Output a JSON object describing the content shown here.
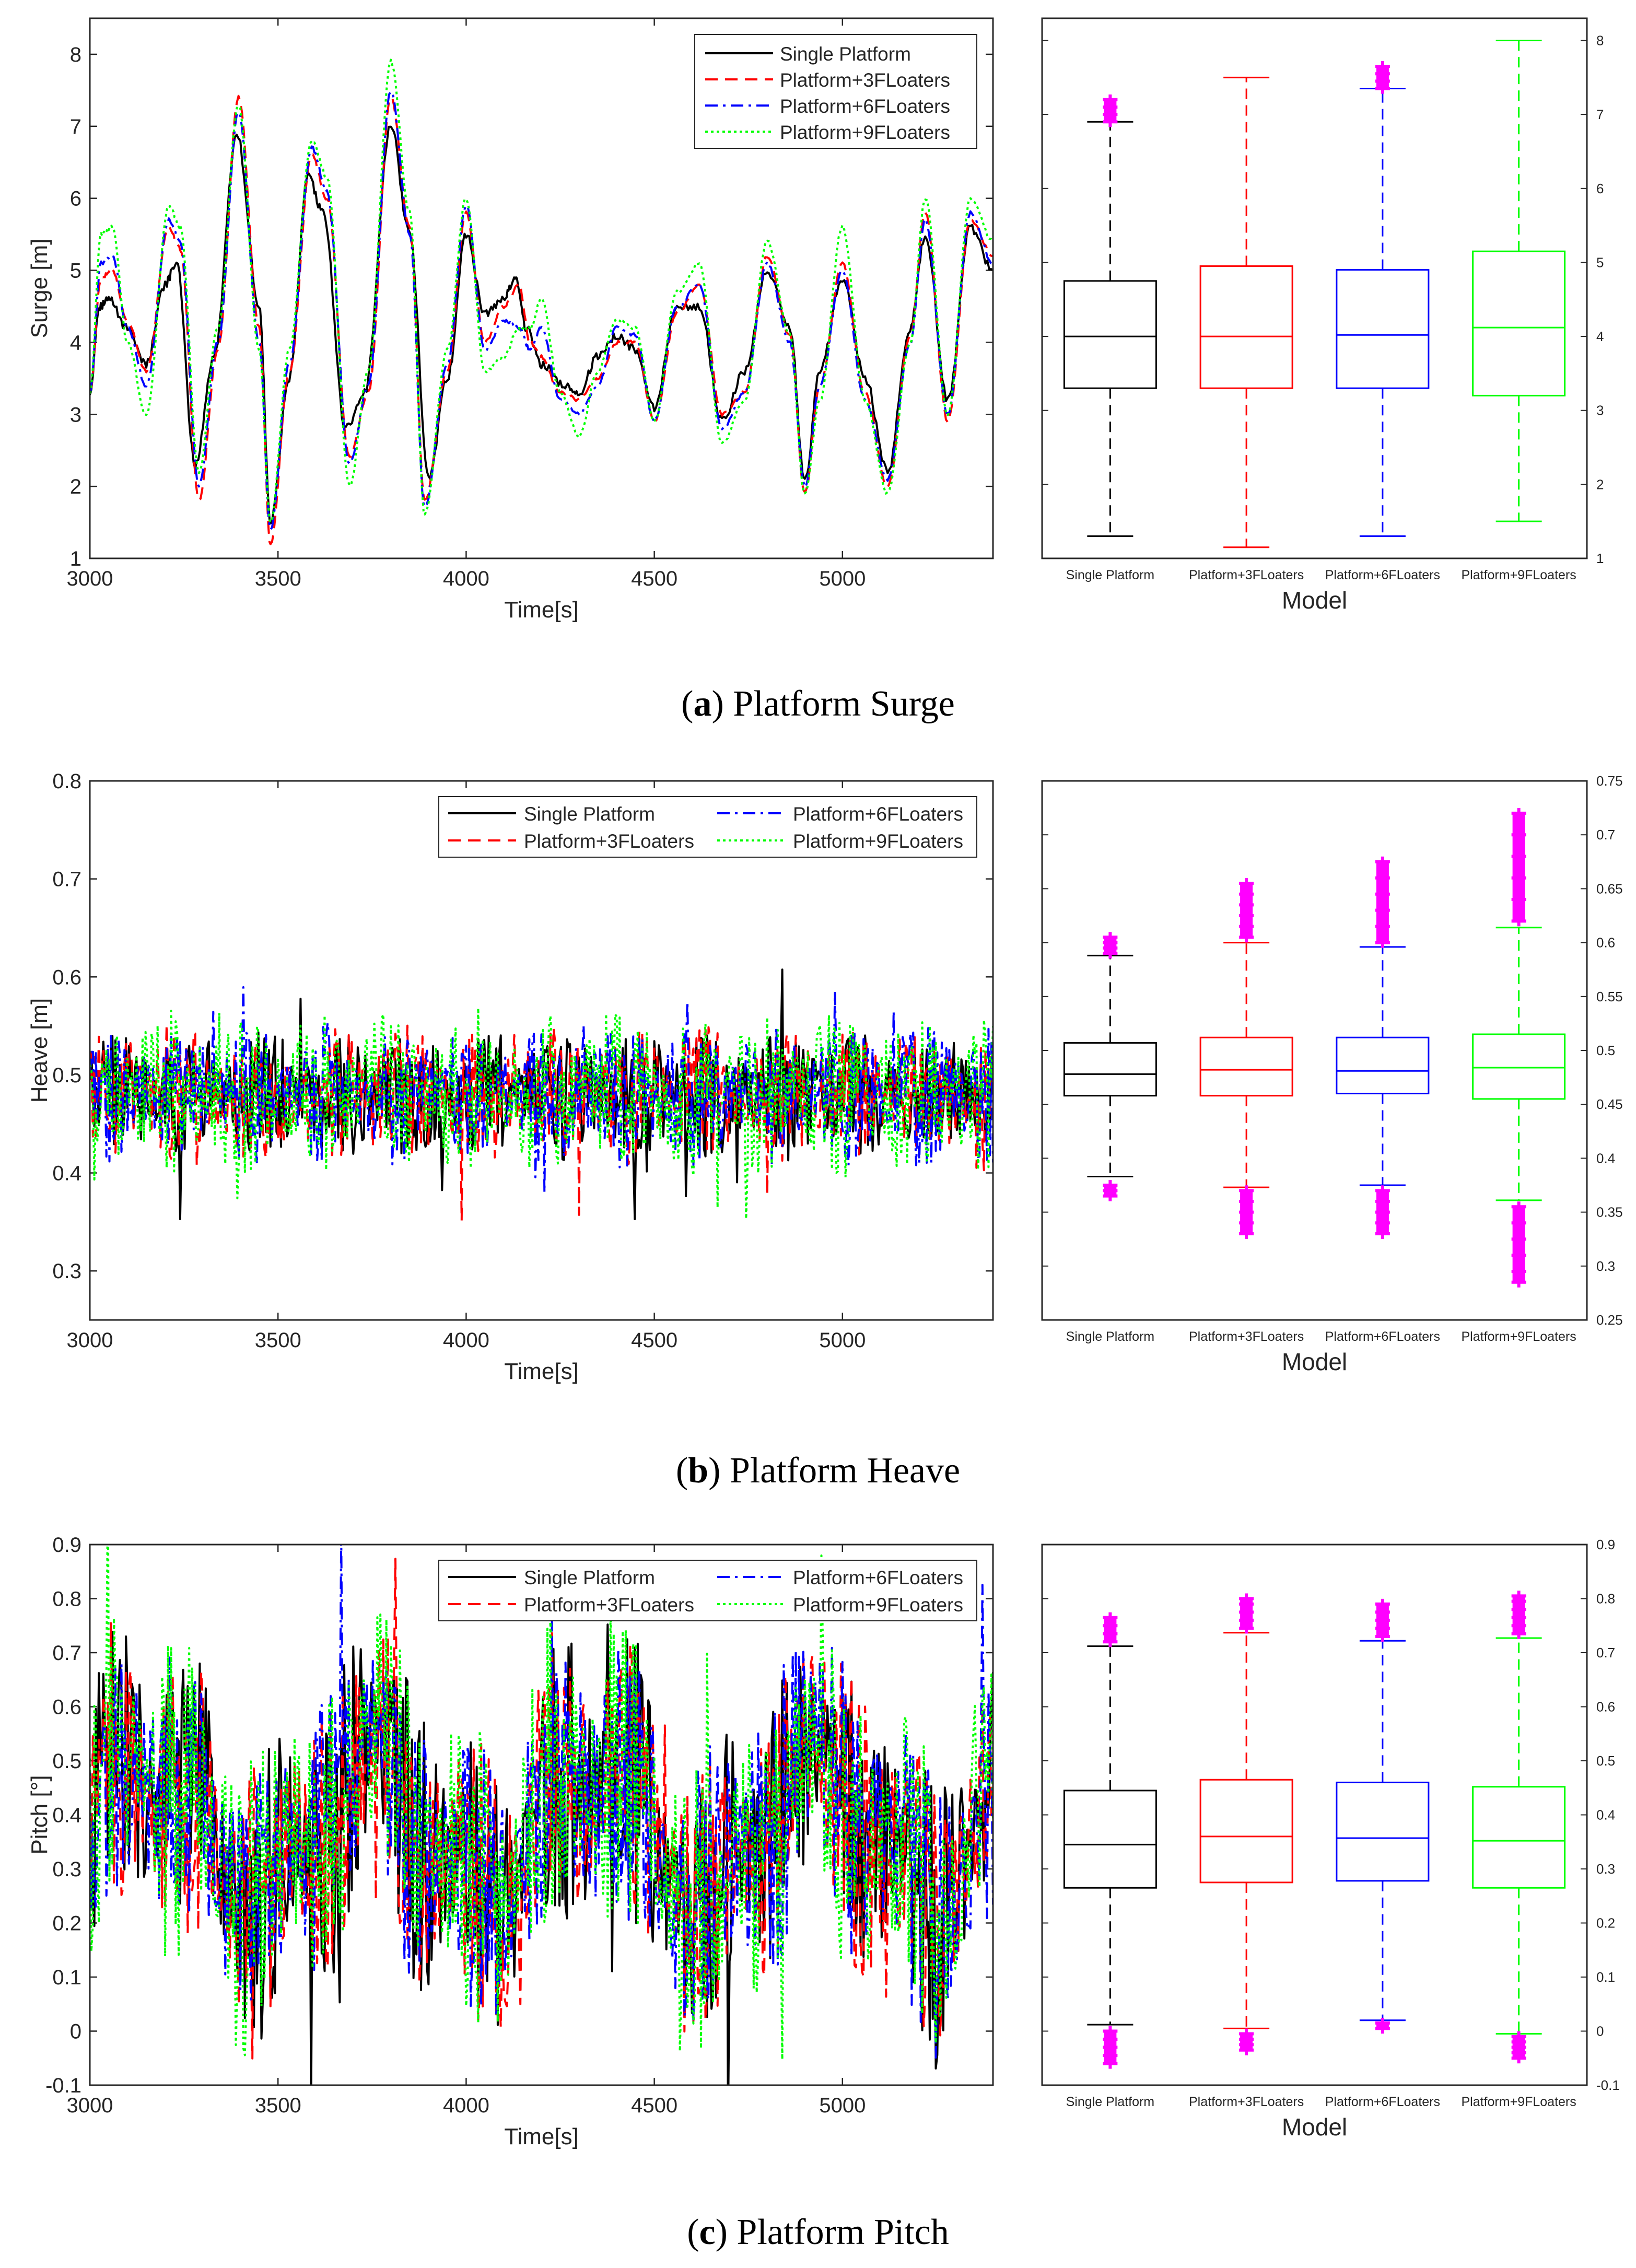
{
  "colors": {
    "single": "#000000",
    "f3": "#ff0000",
    "f6": "#0000ff",
    "f9": "#00ff00",
    "outlier": "#ff00ff",
    "axis": "#262626"
  },
  "chart_data": [
    {
      "id": "a",
      "type": "line",
      "title": "",
      "caption_letter": "a",
      "caption_text": ") Platform Surge",
      "caption_open": "(",
      "xlabel": "Time[s]",
      "ylabel": "Surge [m]",
      "xlim": [
        3000,
        5400
      ],
      "ylim": [
        1,
        8.5
      ],
      "xticks": [
        "3000",
        "3500",
        "4000",
        "4500",
        "5000"
      ],
      "xtick_values": [
        3000,
        3500,
        4000,
        4500,
        5000
      ],
      "yticks": [
        "1",
        "2",
        "3",
        "4",
        "5",
        "6",
        "7",
        "8"
      ],
      "ytick_values": [
        1,
        2,
        3,
        4,
        5,
        6,
        7,
        8
      ],
      "legend_layout": "single-column, top-right",
      "series": [
        {
          "name": "Single Platform",
          "style": "solid",
          "color": "#000000",
          "x": [
            3000,
            3025,
            3050,
            3100,
            3150,
            3200,
            3230,
            3280,
            3330,
            3390,
            3450,
            3480,
            3530,
            3580,
            3620,
            3680,
            3730,
            3800,
            3850,
            3900,
            3950,
            4000,
            4050,
            4100,
            4130,
            4160,
            4200,
            4260,
            4300,
            4350,
            4400,
            4450,
            4500,
            4560,
            4620,
            4680,
            4740,
            4800,
            4860,
            4900,
            4940,
            5000,
            5060,
            5120,
            5180,
            5220,
            5280,
            5340,
            5400
          ],
          "y": [
            3.3,
            4.5,
            4.6,
            4.2,
            3.7,
            4.8,
            5.1,
            2.3,
            3.8,
            6.9,
            4.5,
            1.5,
            3.5,
            6.3,
            5.8,
            2.8,
            3.3,
            7.0,
            5.5,
            2.1,
            3.5,
            5.5,
            4.4,
            4.6,
            4.9,
            4.2,
            3.7,
            3.4,
            3.3,
            3.8,
            4.1,
            3.9,
            3.1,
            4.5,
            4.5,
            2.9,
            3.6,
            5.0,
            4.2,
            2.1,
            3.6,
            4.9,
            3.5,
            2.2,
            4.2,
            5.5,
            3.2,
            5.6,
            5.0
          ]
        },
        {
          "name": "Platform+3FLoaters",
          "style": "dashed",
          "color": "#ff0000",
          "x": [
            3000,
            3030,
            3060,
            3100,
            3150,
            3210,
            3240,
            3290,
            3340,
            3395,
            3450,
            3480,
            3530,
            3590,
            3630,
            3690,
            3740,
            3800,
            3850,
            3890,
            3950,
            4000,
            4050,
            4100,
            4140,
            4170,
            4200,
            4250,
            4300,
            4350,
            4400,
            4450,
            4500,
            4560,
            4620,
            4680,
            4740,
            4800,
            4860,
            4900,
            4940,
            5000,
            5060,
            5120,
            5180,
            5220,
            5280,
            5340,
            5400
          ],
          "y": [
            3.3,
            4.9,
            5.0,
            4.3,
            3.6,
            5.6,
            5.3,
            1.8,
            3.9,
            7.4,
            4.2,
            1.2,
            3.6,
            6.6,
            6.0,
            2.4,
            3.3,
            7.4,
            5.6,
            1.8,
            3.6,
            5.8,
            4.0,
            4.5,
            4.8,
            4.0,
            3.8,
            3.3,
            3.2,
            3.5,
            4.0,
            4.0,
            2.9,
            4.4,
            4.8,
            3.0,
            3.3,
            5.2,
            4.1,
            1.9,
            3.4,
            5.1,
            3.3,
            2.0,
            4.1,
            5.8,
            2.9,
            5.7,
            5.2
          ]
        },
        {
          "name": "Platform+6FLoaters",
          "style": "dashdot",
          "color": "#0000ff",
          "x": [
            3000,
            3030,
            3060,
            3100,
            3150,
            3210,
            3240,
            3290,
            3340,
            3395,
            3450,
            3480,
            3530,
            3590,
            3630,
            3690,
            3740,
            3800,
            3850,
            3890,
            3950,
            4000,
            4050,
            4100,
            4140,
            4170,
            4200,
            4250,
            4300,
            4350,
            4400,
            4450,
            4500,
            4560,
            4620,
            4680,
            4740,
            4800,
            4860,
            4900,
            4940,
            5000,
            5060,
            5120,
            5180,
            5220,
            5280,
            5340,
            5400
          ],
          "y": [
            3.3,
            5.1,
            5.2,
            4.2,
            3.4,
            5.7,
            5.4,
            2.0,
            4.0,
            7.2,
            4.0,
            1.4,
            3.7,
            6.7,
            6.1,
            2.3,
            3.4,
            7.5,
            5.5,
            1.7,
            3.7,
            5.9,
            3.9,
            4.3,
            4.2,
            3.9,
            4.2,
            3.2,
            3.0,
            3.4,
            4.2,
            4.1,
            2.9,
            4.5,
            4.8,
            2.8,
            3.3,
            5.1,
            4.0,
            2.0,
            3.4,
            5.0,
            3.2,
            2.1,
            4.0,
            5.7,
            3.0,
            5.8,
            5.1
          ]
        },
        {
          "name": "Platform+9FLoaters",
          "style": "dotted",
          "color": "#00ff00",
          "x": [
            3000,
            3030,
            3060,
            3100,
            3150,
            3210,
            3240,
            3290,
            3340,
            3395,
            3450,
            3480,
            3530,
            3590,
            3630,
            3690,
            3740,
            3800,
            3850,
            3890,
            3950,
            4000,
            4050,
            4100,
            4140,
            4170,
            4200,
            4250,
            4300,
            4350,
            4400,
            4450,
            4500,
            4560,
            4620,
            4680,
            4740,
            4800,
            4860,
            4900,
            4940,
            5000,
            5060,
            5120,
            5180,
            5220,
            5280,
            5340,
            5400
          ],
          "y": [
            3.3,
            5.5,
            5.6,
            4.0,
            3.0,
            5.9,
            5.6,
            2.2,
            4.2,
            7.3,
            3.9,
            1.5,
            3.9,
            6.8,
            6.3,
            2.0,
            3.6,
            7.9,
            5.8,
            1.6,
            3.9,
            6.0,
            3.6,
            3.8,
            4.2,
            4.2,
            4.6,
            3.3,
            2.7,
            3.6,
            4.3,
            4.2,
            2.9,
            4.7,
            5.1,
            2.6,
            3.2,
            5.4,
            4.1,
            1.9,
            3.2,
            5.6,
            3.2,
            1.9,
            4.0,
            6.0,
            3.0,
            6.0,
            5.4
          ]
        }
      ]
    },
    {
      "id": "a-box",
      "type": "box",
      "xlabel": "Model",
      "ylim": [
        1,
        8.3
      ],
      "yticks": [
        "1",
        "2",
        "3",
        "4",
        "5",
        "6",
        "7",
        "8"
      ],
      "ytick_values": [
        1,
        2,
        3,
        4,
        5,
        6,
        7,
        8
      ],
      "categories": [
        "Single Platform",
        "Platform+3FLoaters",
        "Platform+6FLoaters",
        "Platform+9FLoaters"
      ],
      "boxes": [
        {
          "whisker_low": 1.3,
          "q1": 3.3,
          "median": 4.0,
          "q3": 4.75,
          "whisker_high": 6.9,
          "outliers_high": [
            6.9,
            7.0,
            7.1,
            7.2
          ],
          "outliers_low": []
        },
        {
          "whisker_low": 1.15,
          "q1": 3.3,
          "median": 4.0,
          "q3": 4.95,
          "whisker_high": 7.5,
          "outliers_high": [],
          "outliers_low": []
        },
        {
          "whisker_low": 1.3,
          "q1": 3.3,
          "median": 4.02,
          "q3": 4.9,
          "whisker_high": 7.35,
          "outliers_high": [
            7.35,
            7.45,
            7.55,
            7.65
          ],
          "outliers_low": []
        },
        {
          "whisker_low": 1.5,
          "q1": 3.2,
          "median": 4.12,
          "q3": 5.15,
          "whisker_high": 8.0,
          "outliers_high": [],
          "outliers_low": []
        }
      ]
    },
    {
      "id": "b",
      "type": "line",
      "caption_letter": "b",
      "caption_text": ") Platform Heave",
      "caption_open": "(",
      "xlabel": "Time[s]",
      "ylabel": "Heave [m]",
      "xlim": [
        3000,
        5400
      ],
      "ylim": [
        0.25,
        0.8
      ],
      "xticks": [
        "3000",
        "3500",
        "4000",
        "4500",
        "5000"
      ],
      "xtick_values": [
        3000,
        3500,
        4000,
        4500,
        5000
      ],
      "yticks": [
        "0.3",
        "0.4",
        "0.5",
        "0.6",
        "0.7",
        "0.8"
      ],
      "ytick_values": [
        0.3,
        0.4,
        0.5,
        0.6,
        0.7,
        0.8
      ],
      "legend_layout": "two-column, top-right",
      "series": [
        {
          "name": "Single Platform",
          "style": "solid",
          "color": "#000000",
          "amp": 0.045,
          "phase": 0.0
        },
        {
          "name": "Platform+3FLoaters",
          "style": "dashed",
          "color": "#ff0000",
          "amp": 0.048,
          "phase": 0.3
        },
        {
          "name": "Platform+6FLoaters",
          "style": "dashdot",
          "color": "#0000ff",
          "amp": 0.05,
          "phase": 0.6
        },
        {
          "name": "Platform+9FLoaters",
          "style": "dotted",
          "color": "#00ff00",
          "amp": 0.058,
          "phase": 0.9
        }
      ]
    },
    {
      "id": "b-box",
      "type": "box",
      "xlabel": "Model",
      "ylim": [
        0.25,
        0.75
      ],
      "yticks": [
        "0.25",
        "0.3",
        "0.35",
        "0.4",
        "0.45",
        "0.5",
        "0.55",
        "0.6",
        "0.65",
        "0.7",
        "0.75"
      ],
      "ytick_values": [
        0.25,
        0.3,
        0.35,
        0.4,
        0.45,
        0.5,
        0.55,
        0.6,
        0.65,
        0.7,
        0.75
      ],
      "categories": [
        "Single Platform",
        "Platform+3FLoaters",
        "Platform+6FLoaters",
        "Platform+9FLoaters"
      ],
      "boxes": [
        {
          "whisker_low": 0.383,
          "q1": 0.458,
          "median": 0.478,
          "q3": 0.507,
          "whisker_high": 0.588,
          "outliers_high": [
            0.59,
            0.595,
            0.6,
            0.605
          ],
          "outliers_low": [
            0.375,
            0.37,
            0.365
          ]
        },
        {
          "whisker_low": 0.373,
          "q1": 0.458,
          "median": 0.482,
          "q3": 0.512,
          "whisker_high": 0.6,
          "outliers_high": [
            0.605,
            0.615,
            0.625,
            0.635,
            0.645,
            0.655
          ],
          "outliers_low": [
            0.37,
            0.36,
            0.35,
            0.34,
            0.33
          ]
        },
        {
          "whisker_low": 0.375,
          "q1": 0.46,
          "median": 0.481,
          "q3": 0.512,
          "whisker_high": 0.596,
          "outliers_high": [
            0.6,
            0.615,
            0.63,
            0.645,
            0.66,
            0.675
          ],
          "outliers_low": [
            0.37,
            0.36,
            0.35,
            0.34,
            0.33
          ]
        },
        {
          "whisker_low": 0.361,
          "q1": 0.455,
          "median": 0.484,
          "q3": 0.515,
          "whisker_high": 0.614,
          "outliers_high": [
            0.62,
            0.64,
            0.66,
            0.68,
            0.7,
            0.72
          ],
          "outliers_low": [
            0.355,
            0.34,
            0.325,
            0.31,
            0.295,
            0.285
          ]
        }
      ]
    },
    {
      "id": "c",
      "type": "line",
      "caption_letter": "c",
      "caption_text": ") Platform Pitch",
      "caption_open": "(",
      "xlabel": "Time[s]",
      "ylabel": "Pitch [°]",
      "xlim": [
        3000,
        5400
      ],
      "ylim": [
        -0.1,
        0.9
      ],
      "xticks": [
        "3000",
        "3500",
        "4000",
        "4500",
        "5000"
      ],
      "xtick_values": [
        3000,
        3500,
        4000,
        4500,
        5000
      ],
      "yticks": [
        "-0.1",
        "0",
        "0.1",
        "0.2",
        "0.3",
        "0.4",
        "0.5",
        "0.6",
        "0.7",
        "0.8",
        "0.9"
      ],
      "ytick_values": [
        -0.1,
        0,
        0.1,
        0.2,
        0.3,
        0.4,
        0.5,
        0.6,
        0.7,
        0.8,
        0.9
      ],
      "legend_layout": "two-column, top-right",
      "series": [
        {
          "name": "Single Platform",
          "style": "solid",
          "color": "#000000",
          "amp": 0.18,
          "phase": 0.0
        },
        {
          "name": "Platform+3FLoaters",
          "style": "dashed",
          "color": "#ff0000",
          "amp": 0.19,
          "phase": 0.2
        },
        {
          "name": "Platform+6FLoaters",
          "style": "dashdot",
          "color": "#0000ff",
          "amp": 0.19,
          "phase": 0.4
        },
        {
          "name": "Platform+9FLoaters",
          "style": "dotted",
          "color": "#00ff00",
          "amp": 0.2,
          "phase": 0.6
        }
      ]
    },
    {
      "id": "c-box",
      "type": "box",
      "xlabel": "Model",
      "ylim": [
        -0.1,
        0.9
      ],
      "yticks": [
        "-0.1",
        "0",
        "0.1",
        "0.2",
        "0.3",
        "0.4",
        "0.5",
        "0.6",
        "0.7",
        "0.8",
        "0.9"
      ],
      "ytick_values": [
        -0.1,
        0,
        0.1,
        0.2,
        0.3,
        0.4,
        0.5,
        0.6,
        0.7,
        0.8,
        0.9
      ],
      "categories": [
        "Single Platform",
        "Platform+3FLoaters",
        "Platform+6FLoaters",
        "Platform+9FLoaters"
      ],
      "boxes": [
        {
          "whisker_low": 0.012,
          "q1": 0.265,
          "median": 0.345,
          "q3": 0.445,
          "whisker_high": 0.712,
          "outliers_high": [
            0.72,
            0.735,
            0.75,
            0.765
          ],
          "outliers_low": [
            0.0,
            -0.015,
            -0.03,
            -0.045,
            -0.06
          ]
        },
        {
          "whisker_low": 0.005,
          "q1": 0.275,
          "median": 0.36,
          "q3": 0.465,
          "whisker_high": 0.737,
          "outliers_high": [
            0.745,
            0.76,
            0.775,
            0.79,
            0.8
          ],
          "outliers_low": [
            -0.005,
            -0.015,
            -0.025,
            -0.035
          ]
        },
        {
          "whisker_low": 0.02,
          "q1": 0.278,
          "median": 0.357,
          "q3": 0.46,
          "whisker_high": 0.722,
          "outliers_high": [
            0.73,
            0.745,
            0.76,
            0.775,
            0.79
          ],
          "outliers_low": [
            0.015,
            0.005
          ]
        },
        {
          "whisker_low": -0.005,
          "q1": 0.265,
          "median": 0.352,
          "q3": 0.452,
          "whisker_high": 0.727,
          "outliers_high": [
            0.735,
            0.75,
            0.765,
            0.78,
            0.795,
            0.805
          ],
          "outliers_low": [
            -0.01,
            -0.02,
            -0.03,
            -0.04,
            -0.05
          ]
        }
      ]
    }
  ]
}
